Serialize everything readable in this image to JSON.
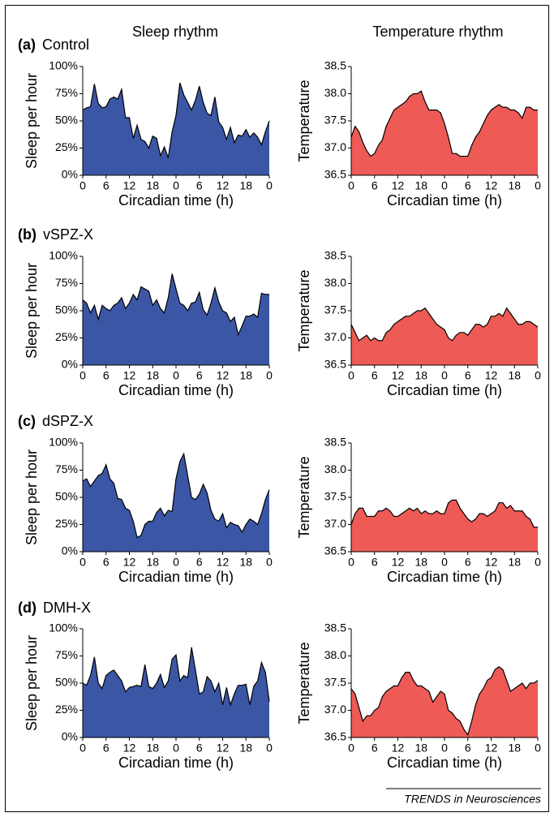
{
  "column_titles": [
    "Sleep rhythm",
    "Temperature rhythm"
  ],
  "panels": [
    {
      "letter": "(a)",
      "name": "Control"
    },
    {
      "letter": "(b)",
      "name": "vSPZ-X"
    },
    {
      "letter": "(c)",
      "name": "dSPZ-X"
    },
    {
      "letter": "(d)",
      "name": "DMH-X"
    }
  ],
  "footer": "TRENDS in Neurosciences",
  "chart_data": [
    {
      "type": "area",
      "ylabel": "Sleep per hour",
      "xlabel": "Circadian time (h)",
      "color": "#3a56a5",
      "x": [
        0,
        1,
        2,
        3,
        4,
        5,
        6,
        7,
        8,
        9,
        10,
        11,
        12,
        13,
        14,
        15,
        16,
        17,
        18,
        19,
        20,
        21,
        22,
        23,
        24,
        25,
        26,
        27,
        28,
        29,
        30,
        31,
        32,
        33,
        34,
        35,
        36,
        37,
        38,
        39,
        40,
        41,
        42,
        43,
        44,
        45,
        46,
        47,
        48
      ],
      "values": [
        60,
        62,
        63,
        84,
        66,
        62,
        63,
        70,
        72,
        70,
        79,
        53,
        53,
        34,
        46,
        33,
        31,
        25,
        36,
        34,
        18,
        26,
        16,
        40,
        55,
        85,
        74,
        67,
        60,
        69,
        82,
        67,
        57,
        55,
        72,
        49,
        44,
        33,
        44,
        30,
        37,
        36,
        42,
        35,
        39,
        35,
        28,
        40,
        50
      ],
      "xlim": [
        0,
        48
      ],
      "xticks": [
        0,
        6,
        12,
        18,
        {
          "value": 24,
          "label": "0"
        },
        {
          "value": 30,
          "label": "6"
        },
        {
          "value": 36,
          "label": "12"
        },
        {
          "value": 42,
          "label": "18"
        },
        {
          "value": 48,
          "label": "0"
        }
      ],
      "ylim": [
        0,
        100
      ],
      "yticks": [
        {
          "value": 0,
          "label": "0%"
        },
        {
          "value": 25,
          "label": "25%"
        },
        {
          "value": 50,
          "label": "50%"
        },
        {
          "value": 75,
          "label": "75%"
        },
        {
          "value": 100,
          "label": "100%"
        }
      ]
    },
    {
      "type": "area",
      "ylabel": "Temperature",
      "xlabel": "Circadian time (h)",
      "color": "#ee5a55",
      "x": [
        0,
        1,
        2,
        3,
        4,
        5,
        6,
        7,
        8,
        9,
        10,
        11,
        12,
        13,
        14,
        15,
        16,
        17,
        18,
        19,
        20,
        21,
        22,
        23,
        24,
        25,
        26,
        27,
        28,
        29,
        30,
        31,
        32,
        33,
        34,
        35,
        36,
        37,
        38,
        39,
        40,
        41,
        42,
        43,
        44,
        45,
        46,
        47,
        48
      ],
      "values": [
        37.2,
        37.4,
        37.3,
        37.1,
        36.95,
        36.85,
        36.9,
        37.05,
        37.15,
        37.4,
        37.55,
        37.7,
        37.75,
        37.8,
        37.85,
        37.95,
        38.0,
        38.0,
        38.05,
        37.85,
        37.7,
        37.7,
        37.7,
        37.65,
        37.45,
        37.2,
        36.9,
        36.9,
        36.85,
        36.85,
        36.85,
        37.05,
        37.2,
        37.3,
        37.45,
        37.6,
        37.7,
        37.75,
        37.8,
        37.75,
        37.75,
        37.7,
        37.7,
        37.65,
        37.55,
        37.75,
        37.75,
        37.7,
        37.7
      ],
      "xlim": [
        0,
        48
      ],
      "xticks": [
        0,
        6,
        12,
        18,
        {
          "value": 24,
          "label": "0"
        },
        {
          "value": 30,
          "label": "6"
        },
        {
          "value": 36,
          "label": "12"
        },
        {
          "value": 42,
          "label": "18"
        },
        {
          "value": 48,
          "label": "0"
        }
      ],
      "ylim": [
        36.5,
        38.5
      ],
      "yticks": [
        36.5,
        {
          "value": 37,
          "label": "37.0"
        },
        37.5,
        {
          "value": 38,
          "label": "38.0"
        },
        38.5
      ]
    },
    {
      "type": "area",
      "ylabel": "Sleep per hour",
      "xlabel": "Circadian time (h)",
      "color": "#3a56a5",
      "x": [
        0,
        1,
        2,
        3,
        4,
        5,
        6,
        7,
        8,
        9,
        10,
        11,
        12,
        13,
        14,
        15,
        16,
        17,
        18,
        19,
        20,
        21,
        22,
        23,
        24,
        25,
        26,
        27,
        28,
        29,
        30,
        31,
        32,
        33,
        34,
        35,
        36,
        37,
        38,
        39,
        40,
        41,
        42,
        43,
        44,
        45,
        46,
        47,
        48
      ],
      "values": [
        60,
        57,
        48,
        55,
        42,
        55,
        52,
        50,
        55,
        57,
        62,
        52,
        57,
        65,
        60,
        72,
        70,
        68,
        55,
        60,
        52,
        48,
        62,
        84,
        70,
        57,
        55,
        50,
        57,
        58,
        67,
        51,
        46,
        57,
        71,
        58,
        50,
        48,
        40,
        44,
        28,
        36,
        45,
        45,
        47,
        44,
        66,
        65,
        65
      ],
      "xlim": [
        0,
        48
      ],
      "xticks": [
        0,
        6,
        12,
        18,
        {
          "value": 24,
          "label": "0"
        },
        {
          "value": 30,
          "label": "6"
        },
        {
          "value": 36,
          "label": "12"
        },
        {
          "value": 42,
          "label": "18"
        },
        {
          "value": 48,
          "label": "0"
        }
      ],
      "ylim": [
        0,
        100
      ],
      "yticks": [
        {
          "value": 0,
          "label": "0%"
        },
        {
          "value": 25,
          "label": "25%"
        },
        {
          "value": 50,
          "label": "50%"
        },
        {
          "value": 75,
          "label": "75%"
        },
        {
          "value": 100,
          "label": "100%"
        }
      ]
    },
    {
      "type": "area",
      "ylabel": "Temperature",
      "xlabel": "Circadian time (h)",
      "color": "#ee5a55",
      "x": [
        0,
        1,
        2,
        3,
        4,
        5,
        6,
        7,
        8,
        9,
        10,
        11,
        12,
        13,
        14,
        15,
        16,
        17,
        18,
        19,
        20,
        21,
        22,
        23,
        24,
        25,
        26,
        27,
        28,
        29,
        30,
        31,
        32,
        33,
        34,
        35,
        36,
        37,
        38,
        39,
        40,
        41,
        42,
        43,
        44,
        45,
        46,
        47,
        48
      ],
      "values": [
        37.25,
        37.1,
        36.95,
        37.0,
        37.05,
        36.95,
        37.0,
        36.95,
        36.95,
        37.1,
        37.15,
        37.25,
        37.3,
        37.35,
        37.4,
        37.4,
        37.45,
        37.5,
        37.5,
        37.55,
        37.45,
        37.35,
        37.25,
        37.2,
        37.15,
        37.0,
        36.95,
        37.05,
        37.1,
        37.1,
        37.05,
        37.15,
        37.25,
        37.25,
        37.2,
        37.25,
        37.4,
        37.4,
        37.45,
        37.4,
        37.55,
        37.45,
        37.35,
        37.25,
        37.25,
        37.3,
        37.3,
        37.25,
        37.2
      ],
      "xlim": [
        0,
        48
      ],
      "xticks": [
        0,
        6,
        12,
        18,
        {
          "value": 24,
          "label": "0"
        },
        {
          "value": 30,
          "label": "6"
        },
        {
          "value": 36,
          "label": "12"
        },
        {
          "value": 42,
          "label": "18"
        },
        {
          "value": 48,
          "label": "0"
        }
      ],
      "ylim": [
        36.5,
        38.5
      ],
      "yticks": [
        36.5,
        {
          "value": 37,
          "label": "37.0"
        },
        37.5,
        {
          "value": 38,
          "label": "38.0"
        },
        38.5
      ]
    },
    {
      "type": "area",
      "ylabel": "Sleep per hour",
      "xlabel": "Circadian time (h)",
      "color": "#3a56a5",
      "x": [
        0,
        1,
        2,
        3,
        4,
        5,
        6,
        7,
        8,
        9,
        10,
        11,
        12,
        13,
        14,
        15,
        16,
        17,
        18,
        19,
        20,
        21,
        22,
        23,
        24,
        25,
        26,
        27,
        28,
        29,
        30,
        31,
        32,
        33,
        34,
        35,
        36,
        37,
        38,
        39,
        40,
        41,
        42,
        43,
        44,
        45,
        46,
        47,
        48
      ],
      "values": [
        65,
        67,
        60,
        65,
        70,
        72,
        80,
        67,
        63,
        49,
        48,
        40,
        38,
        28,
        13,
        15,
        25,
        28,
        28,
        36,
        40,
        33,
        38,
        37,
        67,
        83,
        90,
        70,
        50,
        48,
        53,
        62,
        54,
        38,
        30,
        28,
        35,
        22,
        27,
        25,
        24,
        18,
        25,
        30,
        28,
        25,
        35,
        48,
        57
      ],
      "xlim": [
        0,
        48
      ],
      "xticks": [
        0,
        6,
        12,
        18,
        {
          "value": 24,
          "label": "0"
        },
        {
          "value": 30,
          "label": "6"
        },
        {
          "value": 36,
          "label": "12"
        },
        {
          "value": 42,
          "label": "18"
        },
        {
          "value": 48,
          "label": "0"
        }
      ],
      "ylim": [
        0,
        100
      ],
      "yticks": [
        {
          "value": 0,
          "label": "0%"
        },
        {
          "value": 25,
          "label": "25%"
        },
        {
          "value": 50,
          "label": "50%"
        },
        {
          "value": 75,
          "label": "75%"
        },
        {
          "value": 100,
          "label": "100%"
        }
      ]
    },
    {
      "type": "area",
      "ylabel": "Temperature",
      "xlabel": "Circadian time (h)",
      "color": "#ee5a55",
      "x": [
        0,
        1,
        2,
        3,
        4,
        5,
        6,
        7,
        8,
        9,
        10,
        11,
        12,
        13,
        14,
        15,
        16,
        17,
        18,
        19,
        20,
        21,
        22,
        23,
        24,
        25,
        26,
        27,
        28,
        29,
        30,
        31,
        32,
        33,
        34,
        35,
        36,
        37,
        38,
        39,
        40,
        41,
        42,
        43,
        44,
        45,
        46,
        47,
        48
      ],
      "values": [
        37.0,
        37.2,
        37.3,
        37.3,
        37.15,
        37.15,
        37.15,
        37.25,
        37.25,
        37.3,
        37.25,
        37.15,
        37.15,
        37.2,
        37.25,
        37.3,
        37.25,
        37.3,
        37.2,
        37.25,
        37.2,
        37.2,
        37.25,
        37.2,
        37.2,
        37.4,
        37.45,
        37.45,
        37.3,
        37.2,
        37.1,
        37.05,
        37.1,
        37.2,
        37.2,
        37.15,
        37.2,
        37.25,
        37.4,
        37.4,
        37.3,
        37.35,
        37.25,
        37.25,
        37.25,
        37.15,
        37.1,
        36.95,
        36.95
      ],
      "xlim": [
        0,
        48
      ],
      "xticks": [
        0,
        6,
        12,
        18,
        {
          "value": 24,
          "label": "0"
        },
        {
          "value": 30,
          "label": "6"
        },
        {
          "value": 36,
          "label": "12"
        },
        {
          "value": 42,
          "label": "18"
        },
        {
          "value": 48,
          "label": "0"
        }
      ],
      "ylim": [
        36.5,
        38.5
      ],
      "yticks": [
        36.5,
        {
          "value": 37,
          "label": "37.0"
        },
        37.5,
        {
          "value": 38,
          "label": "38.0"
        },
        38.5
      ]
    },
    {
      "type": "area",
      "ylabel": "Sleep per hour",
      "xlabel": "Circadian time (h)",
      "color": "#3a56a5",
      "x": [
        0,
        1,
        2,
        3,
        4,
        5,
        6,
        7,
        8,
        9,
        10,
        11,
        12,
        13,
        14,
        15,
        16,
        17,
        18,
        19,
        20,
        21,
        22,
        23,
        24,
        25,
        26,
        27,
        28,
        29,
        30,
        31,
        32,
        33,
        34,
        35,
        36,
        37,
        38,
        39,
        40,
        41,
        42,
        43,
        44,
        45,
        46,
        47,
        48
      ],
      "values": [
        50,
        48,
        57,
        74,
        50,
        45,
        57,
        60,
        62,
        57,
        52,
        42,
        46,
        47,
        48,
        47,
        67,
        47,
        45,
        50,
        58,
        46,
        52,
        72,
        76,
        52,
        57,
        55,
        83,
        62,
        40,
        42,
        56,
        52,
        42,
        50,
        30,
        46,
        30,
        40,
        48,
        48,
        49,
        30,
        47,
        52,
        69,
        60,
        33
      ],
      "xlim": [
        0,
        48
      ],
      "xticks": [
        0,
        6,
        12,
        18,
        {
          "value": 24,
          "label": "0"
        },
        {
          "value": 30,
          "label": "6"
        },
        {
          "value": 36,
          "label": "12"
        },
        {
          "value": 42,
          "label": "18"
        },
        {
          "value": 48,
          "label": "0"
        }
      ],
      "ylim": [
        0,
        100
      ],
      "yticks": [
        {
          "value": 0,
          "label": "0%"
        },
        {
          "value": 25,
          "label": "25%"
        },
        {
          "value": 50,
          "label": "50%"
        },
        {
          "value": 75,
          "label": "75%"
        },
        {
          "value": 100,
          "label": "100%"
        }
      ]
    },
    {
      "type": "area",
      "ylabel": "Temperature",
      "xlabel": "Circadian time (h)",
      "color": "#ee5a55",
      "x": [
        0,
        1,
        2,
        3,
        4,
        5,
        6,
        7,
        8,
        9,
        10,
        11,
        12,
        13,
        14,
        15,
        16,
        17,
        18,
        19,
        20,
        21,
        22,
        23,
        24,
        25,
        26,
        27,
        28,
        29,
        30,
        31,
        32,
        33,
        34,
        35,
        36,
        37,
        38,
        39,
        40,
        41,
        42,
        43,
        44,
        45,
        46,
        47,
        48
      ],
      "values": [
        37.4,
        37.3,
        37.05,
        36.8,
        36.9,
        36.9,
        37.0,
        37.05,
        37.25,
        37.35,
        37.4,
        37.45,
        37.45,
        37.6,
        37.7,
        37.7,
        37.55,
        37.45,
        37.45,
        37.4,
        37.35,
        37.15,
        37.25,
        37.35,
        37.3,
        37.0,
        36.95,
        36.85,
        36.8,
        36.65,
        36.55,
        36.8,
        37.1,
        37.3,
        37.4,
        37.55,
        37.6,
        37.75,
        37.8,
        37.75,
        37.55,
        37.35,
        37.4,
        37.45,
        37.5,
        37.4,
        37.5,
        37.5,
        37.55
      ],
      "xlim": [
        0,
        48
      ],
      "xticks": [
        0,
        6,
        12,
        18,
        {
          "value": 24,
          "label": "0"
        },
        {
          "value": 30,
          "label": "6"
        },
        {
          "value": 36,
          "label": "12"
        },
        {
          "value": 42,
          "label": "18"
        },
        {
          "value": 48,
          "label": "0"
        }
      ],
      "ylim": [
        36.5,
        38.5
      ],
      "yticks": [
        36.5,
        {
          "value": 37,
          "label": "37.0"
        },
        37.5,
        {
          "value": 38,
          "label": "38.0"
        },
        38.5
      ]
    }
  ]
}
